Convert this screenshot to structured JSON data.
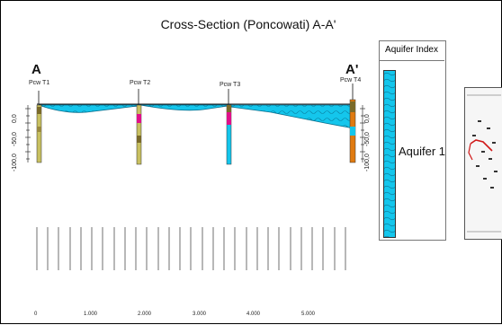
{
  "diagram": {
    "title": "Cross-Section (Poncowati) A-A'",
    "end_label_left": "A",
    "end_label_right": "A'",
    "wells": [
      "Pcw T1",
      "Pcw T2",
      "Pcw T3",
      "Pcw T4"
    ],
    "depth_ticks_left": [
      "0,0",
      "-50,0",
      "-100,0"
    ],
    "depth_ticks_right": [
      "0,0",
      "-50,0",
      "-100,0"
    ],
    "aquifer_color": "#14c6ec",
    "legend": {
      "title": "Aquifer Index",
      "items": [
        {
          "label": "Aquifer 1",
          "color": "#14c6ec"
        }
      ]
    },
    "scale_labels": [
      "0",
      "1.000",
      "2.000",
      "3.000",
      "4.000",
      "5.000"
    ]
  }
}
